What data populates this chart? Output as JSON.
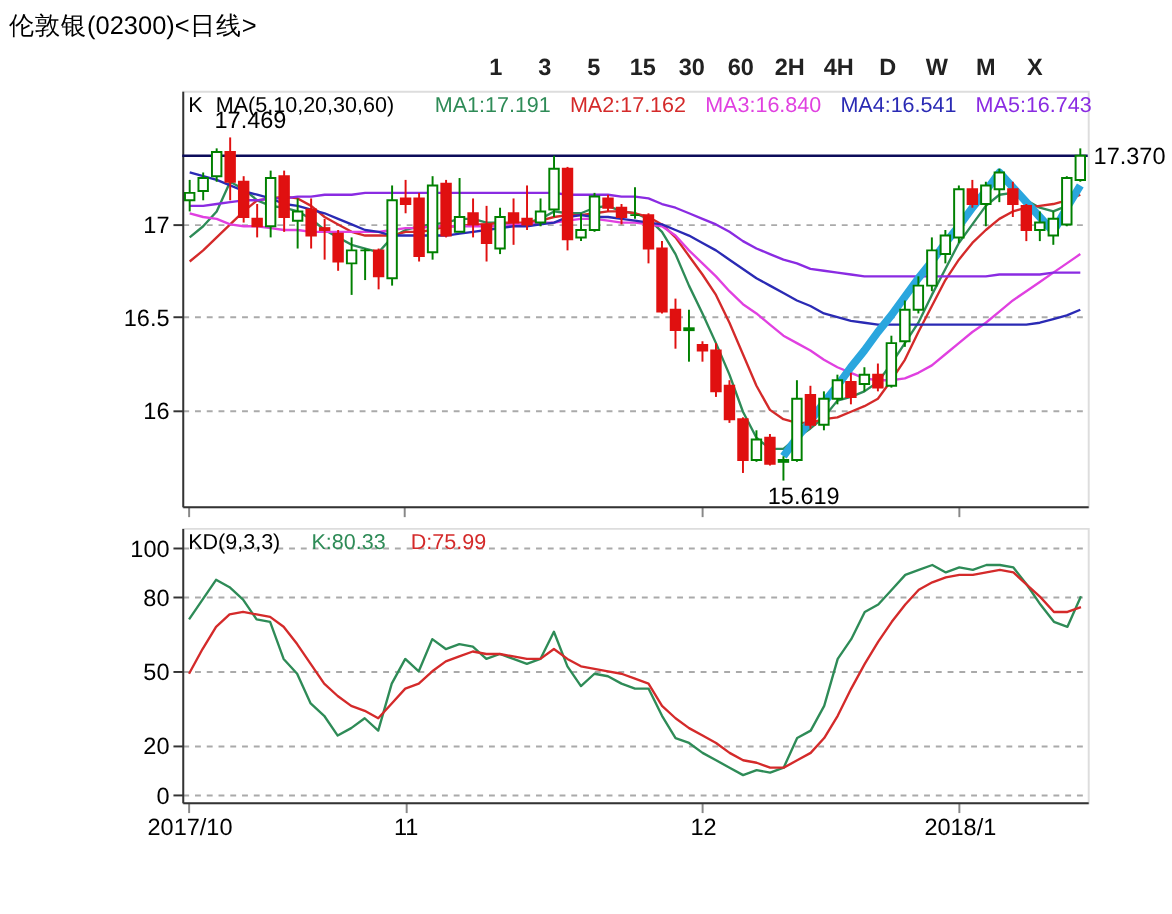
{
  "chart_data": [
    {
      "type": "candlestick",
      "title": "伦敦银(02300)<日线>",
      "categories": [
        "2017/10",
        null,
        null,
        null,
        null,
        null,
        null,
        null,
        null,
        null,
        null,
        null,
        null,
        null,
        null,
        null,
        "11",
        null,
        null,
        null,
        null,
        null,
        null,
        null,
        null,
        null,
        null,
        null,
        null,
        null,
        null,
        null,
        null,
        null,
        null,
        null,
        null,
        null,
        "12",
        null,
        null,
        null,
        null,
        null,
        null,
        null,
        null,
        null,
        null,
        null,
        null,
        null,
        null,
        null,
        null,
        null,
        null,
        "2018/1",
        null,
        null,
        null,
        null,
        null,
        null,
        null,
        null,
        null
      ],
      "ohlc": [
        [
          17.13,
          17.24,
          17.07,
          17.17
        ],
        [
          17.18,
          17.28,
          17.13,
          17.25
        ],
        [
          17.26,
          17.41,
          17.23,
          17.39
        ],
        [
          17.39,
          17.469,
          17.13,
          17.23
        ],
        [
          17.23,
          17.26,
          17.01,
          17.04
        ],
        [
          17.03,
          17.11,
          16.93,
          16.99
        ],
        [
          16.99,
          17.29,
          16.93,
          17.25
        ],
        [
          17.26,
          17.29,
          16.96,
          17.04
        ],
        [
          17.02,
          17.14,
          16.87,
          17.07
        ],
        [
          17.08,
          17.14,
          16.87,
          16.94
        ],
        [
          16.98,
          17.03,
          16.81,
          16.97
        ],
        [
          16.95,
          16.97,
          16.75,
          16.8
        ],
        [
          16.79,
          16.93,
          16.62,
          16.86
        ],
        [
          16.86,
          16.87,
          16.7,
          16.86
        ],
        [
          16.86,
          16.87,
          16.65,
          16.72
        ],
        [
          16.71,
          17.21,
          16.67,
          17.13
        ],
        [
          17.14,
          17.24,
          17.06,
          17.11
        ],
        [
          17.14,
          17.17,
          16.8,
          16.83
        ],
        [
          16.85,
          17.26,
          16.81,
          17.21
        ],
        [
          17.22,
          17.24,
          16.93,
          16.94
        ],
        [
          16.96,
          17.25,
          16.96,
          17.04
        ],
        [
          17.06,
          17.14,
          16.93,
          17.0
        ],
        [
          17.0,
          17.1,
          16.8,
          16.9
        ],
        [
          16.87,
          17.09,
          16.84,
          17.04
        ],
        [
          17.06,
          17.14,
          16.89,
          17.01
        ],
        [
          17.03,
          17.21,
          16.97,
          17.0
        ],
        [
          17.01,
          17.14,
          16.99,
          17.07
        ],
        [
          17.08,
          17.37,
          17.04,
          17.3
        ],
        [
          17.3,
          17.31,
          16.86,
          16.92
        ],
        [
          16.93,
          17.06,
          16.91,
          16.97
        ],
        [
          16.97,
          17.17,
          16.96,
          17.15
        ],
        [
          17.14,
          17.16,
          17.07,
          17.09
        ],
        [
          17.09,
          17.11,
          17.0,
          17.04
        ],
        [
          17.05,
          17.2,
          17.03,
          17.05
        ],
        [
          17.05,
          17.06,
          16.79,
          16.87
        ],
        [
          16.87,
          16.91,
          16.52,
          16.53
        ],
        [
          16.54,
          16.6,
          16.33,
          16.43
        ],
        [
          16.43,
          16.54,
          16.26,
          16.44
        ],
        [
          16.35,
          16.37,
          16.26,
          16.32
        ],
        [
          16.32,
          16.36,
          16.07,
          16.1
        ],
        [
          16.13,
          16.16,
          15.93,
          15.95
        ],
        [
          15.95,
          15.96,
          15.66,
          15.73
        ],
        [
          15.73,
          15.89,
          15.72,
          15.84
        ],
        [
          15.85,
          15.87,
          15.7,
          15.71
        ],
        [
          15.72,
          15.75,
          15.619,
          15.73
        ],
        [
          15.73,
          16.16,
          15.72,
          16.06
        ],
        [
          16.08,
          16.13,
          15.9,
          15.92
        ],
        [
          15.92,
          16.1,
          15.89,
          16.06
        ],
        [
          16.06,
          16.19,
          16.03,
          16.16
        ],
        [
          16.15,
          16.2,
          16.03,
          16.07
        ],
        [
          16.14,
          16.23,
          16.1,
          16.19
        ],
        [
          16.19,
          16.25,
          16.1,
          16.12
        ],
        [
          16.13,
          16.4,
          16.12,
          16.36
        ],
        [
          16.37,
          16.59,
          16.34,
          16.54
        ],
        [
          16.54,
          16.72,
          16.52,
          16.67
        ],
        [
          16.67,
          16.93,
          16.64,
          16.86
        ],
        [
          16.84,
          16.97,
          16.79,
          16.94
        ],
        [
          16.93,
          17.21,
          16.9,
          17.19
        ],
        [
          17.19,
          17.24,
          17.09,
          17.11
        ],
        [
          17.11,
          17.23,
          16.99,
          17.21
        ],
        [
          17.19,
          17.3,
          17.12,
          17.28
        ],
        [
          17.19,
          17.23,
          17.04,
          17.11
        ],
        [
          17.1,
          17.11,
          16.91,
          16.97
        ],
        [
          16.97,
          17.07,
          16.91,
          17.01
        ],
        [
          16.94,
          17.07,
          16.89,
          17.03
        ],
        [
          17.0,
          17.26,
          16.99,
          17.25
        ],
        [
          17.24,
          17.41,
          17.23,
          17.37
        ]
      ],
      "series": [
        {
          "name": "MA1:17.191",
          "type": "line",
          "color": "#2e8b57",
          "values": [
            16.93,
            16.99,
            17.07,
            17.23,
            17.19,
            17.13,
            17.1,
            17.09,
            17.07,
            17.03,
            16.97,
            16.93,
            16.89,
            16.87,
            16.85,
            16.93,
            16.97,
            16.99,
            17.0,
            17.01,
            17.03,
            17.03,
            17.01,
            17.01,
            17.0,
            17.01,
            17.03,
            17.07,
            17.06,
            17.06,
            17.09,
            17.1,
            17.07,
            17.06,
            17.03,
            16.96,
            16.84,
            16.67,
            16.52,
            16.36,
            16.19,
            15.99,
            15.85,
            15.79,
            15.79,
            15.85,
            15.9,
            15.96,
            16.05,
            16.07,
            16.1,
            16.15,
            16.25,
            16.36,
            16.47,
            16.62,
            16.76,
            16.9,
            17.0,
            17.1,
            17.16,
            17.17,
            17.13,
            17.09,
            17.07,
            17.1,
            17.19
          ]
        },
        {
          "name": "MA2:17.162",
          "type": "line",
          "color": "#d42a2a",
          "values": [
            16.8,
            16.86,
            16.93,
            17.0,
            17.07,
            17.13,
            17.14,
            17.15,
            17.14,
            17.1,
            17.04,
            17.0,
            16.96,
            16.94,
            16.94,
            16.94,
            16.96,
            16.96,
            16.97,
            16.99,
            16.99,
            17.0,
            17.0,
            17.01,
            17.01,
            17.01,
            17.02,
            17.04,
            17.05,
            17.05,
            17.06,
            17.07,
            17.07,
            17.06,
            17.04,
            17.0,
            16.93,
            16.83,
            16.73,
            16.62,
            16.47,
            16.3,
            16.13,
            16.0,
            15.95,
            15.93,
            15.93,
            15.95,
            15.96,
            15.99,
            16.02,
            16.06,
            16.16,
            16.27,
            16.42,
            16.56,
            16.7,
            16.81,
            16.9,
            16.97,
            17.03,
            17.07,
            17.09,
            17.1,
            17.11,
            17.13,
            17.16
          ]
        },
        {
          "name": "MA3:16.840",
          "type": "line",
          "color": "#e040e0",
          "values": [
            17.06,
            17.04,
            17.03,
            17.0,
            16.99,
            16.99,
            16.98,
            16.97,
            16.97,
            16.96,
            16.96,
            16.96,
            16.96,
            16.96,
            16.96,
            16.97,
            16.98,
            16.98,
            16.99,
            16.99,
            16.99,
            16.99,
            16.99,
            16.99,
            17.0,
            17.0,
            17.01,
            17.01,
            17.02,
            17.03,
            17.03,
            17.02,
            17.01,
            17.01,
            17.0,
            16.99,
            16.94,
            16.86,
            16.79,
            16.72,
            16.64,
            16.57,
            16.52,
            16.46,
            16.4,
            16.36,
            16.32,
            16.27,
            16.23,
            16.2,
            16.17,
            16.16,
            16.16,
            16.17,
            16.2,
            16.24,
            16.3,
            16.36,
            16.42,
            16.47,
            16.53,
            16.59,
            16.64,
            16.69,
            16.74,
            16.79,
            16.84
          ]
        },
        {
          "name": "MA4:16.541",
          "type": "line",
          "color": "#2a2ab4",
          "values": [
            17.28,
            17.26,
            17.24,
            17.21,
            17.18,
            17.16,
            17.14,
            17.11,
            17.1,
            17.08,
            17.06,
            17.03,
            17.0,
            16.97,
            16.96,
            16.94,
            16.94,
            16.94,
            16.94,
            16.94,
            16.95,
            16.96,
            16.97,
            16.98,
            16.99,
            16.99,
            17.0,
            17.01,
            17.04,
            17.05,
            17.04,
            17.04,
            17.03,
            17.02,
            17.01,
            17.0,
            16.97,
            16.94,
            16.9,
            16.86,
            16.81,
            16.76,
            16.71,
            16.67,
            16.63,
            16.59,
            16.56,
            16.52,
            16.5,
            16.48,
            16.47,
            16.46,
            16.46,
            16.46,
            16.46,
            16.46,
            16.46,
            16.46,
            16.46,
            16.46,
            16.46,
            16.46,
            16.46,
            16.47,
            16.49,
            16.51,
            16.54
          ]
        },
        {
          "name": "MA5:16.743",
          "type": "line",
          "color": "#8a2be2",
          "values": [
            17.1,
            17.1,
            17.11,
            17.12,
            17.13,
            17.13,
            17.14,
            17.14,
            17.15,
            17.15,
            17.16,
            17.16,
            17.16,
            17.17,
            17.17,
            17.17,
            17.17,
            17.17,
            17.17,
            17.17,
            17.17,
            17.17,
            17.17,
            17.17,
            17.17,
            17.17,
            17.17,
            17.17,
            17.16,
            17.16,
            17.16,
            17.16,
            17.15,
            17.15,
            17.14,
            17.11,
            17.09,
            17.06,
            17.03,
            17.0,
            16.96,
            16.91,
            16.87,
            16.84,
            16.81,
            16.79,
            16.76,
            16.75,
            16.74,
            16.73,
            16.72,
            16.72,
            16.72,
            16.72,
            16.72,
            16.72,
            16.72,
            16.72,
            16.72,
            16.72,
            16.73,
            16.73,
            16.73,
            16.73,
            16.74,
            16.74,
            16.74
          ]
        },
        {
          "type": "line",
          "color": "#2aa6de",
          "values": [
            null,
            null,
            null,
            null,
            null,
            null,
            null,
            null,
            null,
            null,
            null,
            null,
            null,
            null,
            null,
            null,
            null,
            null,
            null,
            null,
            null,
            null,
            null,
            null,
            null,
            null,
            null,
            null,
            null,
            null,
            null,
            null,
            null,
            null,
            null,
            null,
            null,
            null,
            null,
            null,
            null,
            null,
            null,
            null,
            15.75,
            15.85,
            15.94,
            16.04,
            16.13,
            16.23,
            16.32,
            16.42,
            16.51,
            16.61,
            16.71,
            16.8,
            16.9,
            16.99,
            17.09,
            17.18,
            17.28,
            17.2,
            17.12,
            17.04,
            16.96,
            17.09,
            17.21
          ]
        }
      ],
      "ylim": [
        15.48,
        17.72
      ],
      "yticks": [
        16,
        16.5,
        17
      ],
      "grid": "y",
      "tick_labels": "y",
      "ref_lines": [
        {
          "axis": "y",
          "value": 17.37,
          "label": "17.370",
          "color": "#0c0c5a"
        }
      ],
      "annotations": [
        "K",
        "MA(5,10,20,30,60)",
        "1",
        "3",
        "5",
        "15",
        "30",
        "60",
        "2H",
        "4H",
        "D",
        "W",
        "M",
        "X",
        "17.469",
        "15.619"
      ]
    },
    {
      "type": "line",
      "categories": [
        "2017/10",
        null,
        null,
        null,
        null,
        null,
        null,
        null,
        null,
        null,
        null,
        null,
        null,
        null,
        null,
        null,
        "11",
        null,
        null,
        null,
        null,
        null,
        null,
        null,
        null,
        null,
        null,
        null,
        null,
        null,
        null,
        null,
        null,
        null,
        null,
        null,
        null,
        null,
        "12",
        null,
        null,
        null,
        null,
        null,
        null,
        null,
        null,
        null,
        null,
        null,
        null,
        null,
        null,
        null,
        null,
        null,
        null,
        "2018/1",
        null,
        null,
        null,
        null,
        null,
        null,
        null,
        null,
        null
      ],
      "series": [
        {
          "name": "K:80.33",
          "color": "#2e8b57",
          "values": [
            71,
            79,
            87,
            84,
            79,
            71,
            70,
            55,
            49,
            37,
            32,
            24,
            27,
            31,
            26,
            45,
            55,
            50,
            63,
            59,
            61,
            60,
            55,
            57,
            55,
            53,
            55,
            66,
            52,
            44,
            49,
            48,
            45,
            43,
            43,
            32,
            23,
            21,
            17,
            14,
            11,
            8,
            10,
            9,
            11,
            23,
            26,
            36,
            55,
            63,
            74,
            77,
            83,
            89,
            91,
            93,
            90,
            92,
            91,
            93,
            93,
            92,
            85,
            77,
            70,
            68,
            80.33
          ]
        },
        {
          "name": "D:75.99",
          "color": "#d42a2a",
          "values": [
            49,
            59,
            68,
            73,
            74,
            73,
            72,
            68,
            61,
            53,
            45,
            40,
            36,
            34,
            31,
            37,
            43,
            45,
            50,
            54,
            56,
            58,
            57,
            57,
            56,
            55,
            55,
            59,
            55,
            52,
            51,
            50,
            49,
            47,
            45,
            36,
            31,
            27,
            24,
            21,
            17,
            14,
            13,
            11,
            11,
            14,
            17,
            23,
            32,
            43,
            53,
            62,
            70,
            77,
            83,
            86,
            88,
            89,
            89,
            90,
            91,
            90,
            85,
            80,
            74,
            74,
            75.99
          ]
        }
      ],
      "ylim": [
        -3,
        108
      ],
      "yticks": [
        0,
        20,
        50,
        80,
        100
      ],
      "grid": "y",
      "annotations": [
        "KD(9,3,3)"
      ]
    }
  ]
}
